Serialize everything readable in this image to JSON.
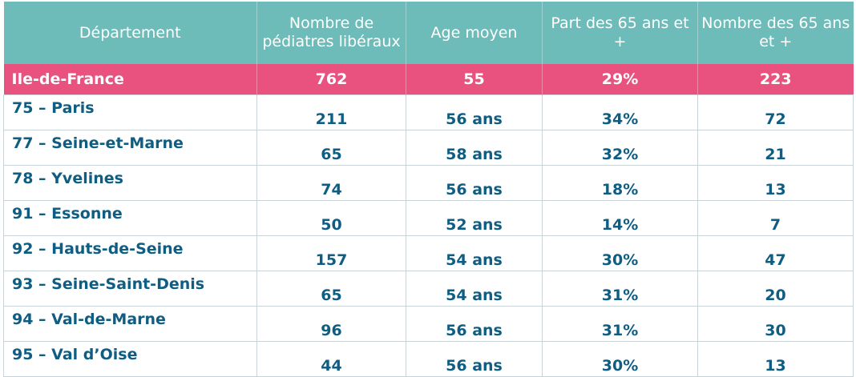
{
  "table": {
    "headers": [
      "Département",
      "Nombre de pédiatres libéraux",
      "Age moyen",
      "Part des 65 ans et +",
      "Nombre des 65 ans et +"
    ],
    "region": {
      "name": "Ile-de-France",
      "pediatres": "762",
      "age_moyen": "55",
      "part_65": "29%",
      "nombre_65": "223"
    },
    "rows": [
      {
        "name": "75 – Paris",
        "pediatres": "211",
        "age_moyen": "56 ans",
        "part_65": "34%",
        "nombre_65": "72"
      },
      {
        "name": "77 – Seine-et-Marne",
        "pediatres": "65",
        "age_moyen": "58 ans",
        "part_65": "32%",
        "nombre_65": "21"
      },
      {
        "name": "78 – Yvelines",
        "pediatres": "74",
        "age_moyen": "56 ans",
        "part_65": "18%",
        "nombre_65": "13"
      },
      {
        "name": "91 – Essonne",
        "pediatres": "50",
        "age_moyen": "52 ans",
        "part_65": "14%",
        "nombre_65": "7"
      },
      {
        "name": "92 – Hauts-de-Seine",
        "pediatres": "157",
        "age_moyen": "54 ans",
        "part_65": "30%",
        "nombre_65": "47"
      },
      {
        "name": "93 – Seine-Saint-Denis",
        "pediatres": "65",
        "age_moyen": "54 ans",
        "part_65": "31%",
        "nombre_65": "20"
      },
      {
        "name": "94 – Val-de-Marne",
        "pediatres": "96",
        "age_moyen": "56 ans",
        "part_65": "31%",
        "nombre_65": "30"
      },
      {
        "name": "95 – Val d’Oise",
        "pediatres": "44",
        "age_moyen": "56 ans",
        "part_65": "30%",
        "nombre_65": "13"
      }
    ]
  },
  "colors": {
    "header_bg": "#6dbcb9",
    "region_bg": "#e9527f",
    "text_blue": "#0f5d82"
  }
}
